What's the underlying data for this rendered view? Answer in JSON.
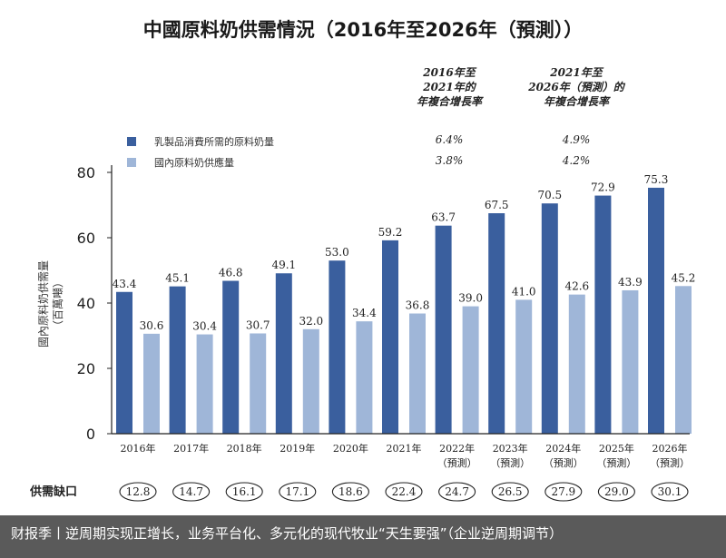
{
  "chart_data": {
    "type": "bar",
    "title": "中國原料奶供需情況（2016年至2026年（預測））",
    "ylabel": "國內原料奶供需量\n（百萬噸）",
    "ylim": [
      0,
      80
    ],
    "yticks": [
      0,
      20,
      40,
      60,
      80
    ],
    "grid": false,
    "legend_position": "top-left",
    "categories": [
      "2016年",
      "2017年",
      "2018年",
      "2019年",
      "2020年",
      "2021年",
      "2022年\n（預測）",
      "2023年\n（預測）",
      "2024年\n（預測）",
      "2025年\n（預測）",
      "2026年\n（預測）"
    ],
    "series": [
      {
        "name": "乳製品消費所需的原料奶量",
        "color": "#3a5f9e",
        "values": [
          43.4,
          45.1,
          46.8,
          49.1,
          53.0,
          59.2,
          63.7,
          67.5,
          70.5,
          72.9,
          75.3
        ]
      },
      {
        "name": "國內原料奶供應量",
        "color": "#9fb6d8",
        "values": [
          30.6,
          30.4,
          30.7,
          32.0,
          34.4,
          36.8,
          39.0,
          41.0,
          42.6,
          43.9,
          45.2
        ]
      }
    ],
    "cagr_table": {
      "headers": [
        "2016年至\n2021年的\n年複合增長率",
        "2021年至\n2026年（預測）的\n年複合增長率"
      ],
      "rows": [
        [
          "6.4%",
          "4.9%"
        ],
        [
          "3.8%",
          "4.2%"
        ]
      ]
    },
    "supply_gap": {
      "label": "供需缺口",
      "values": [
        "12.8",
        "14.7",
        "16.1",
        "17.1",
        "18.6",
        "22.4",
        "24.7",
        "26.5",
        "27.9",
        "29.0",
        "30.1"
      ]
    }
  },
  "footer": {
    "text": "财报季丨逆周期实现正增长，业务平台化、多元化的现代牧业“天生要强”（企业逆周期调节）"
  }
}
